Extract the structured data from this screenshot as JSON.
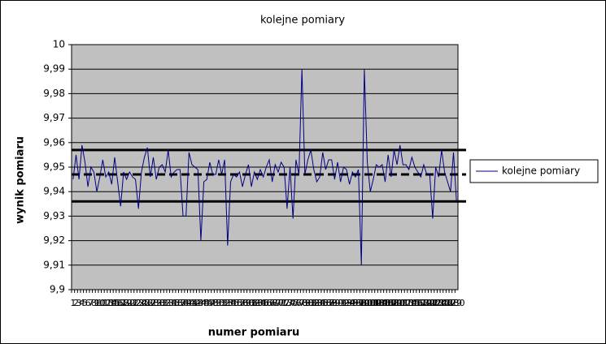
{
  "chart_data": {
    "type": "line",
    "title": "kolejne pomiary",
    "x_label": "numer pomiaru",
    "y_label": "wynik pomiaru",
    "x": [
      1,
      2,
      3,
      4,
      5,
      6,
      7,
      8,
      9,
      10,
      11,
      12,
      13,
      14,
      15,
      16,
      17,
      18,
      19,
      20,
      21,
      22,
      23,
      24,
      25,
      26,
      27,
      28,
      29,
      30,
      31,
      32,
      33,
      34,
      35,
      36,
      37,
      38,
      39,
      40,
      41,
      42,
      43,
      44,
      45,
      46,
      47,
      48,
      49,
      50,
      51,
      52,
      53,
      54,
      55,
      56,
      57,
      58,
      59,
      60,
      61,
      62,
      63,
      64,
      65,
      66,
      67,
      68,
      69,
      70,
      71,
      72,
      73,
      74,
      75,
      76,
      77,
      78,
      79,
      80,
      81,
      82,
      83,
      84,
      85,
      86,
      87,
      88,
      89,
      90,
      91,
      92,
      93,
      94,
      95,
      96,
      97,
      98,
      99,
      100,
      101,
      102,
      103,
      104,
      105,
      106,
      107,
      108,
      109,
      110,
      111,
      112,
      113,
      114,
      115,
      116,
      117,
      118,
      119,
      120,
      121,
      122,
      123,
      124,
      125,
      126,
      127,
      128,
      129,
      130
    ],
    "series": [
      {
        "name": "kolejne pomiary",
        "color": "#000080",
        "values": [
          9.945,
          9.955,
          9.945,
          9.959,
          9.952,
          9.942,
          9.95,
          9.948,
          9.94,
          9.946,
          9.953,
          9.946,
          9.948,
          9.943,
          9.954,
          9.944,
          9.934,
          9.948,
          9.945,
          9.948,
          9.946,
          9.945,
          9.933,
          9.948,
          9.954,
          9.958,
          9.946,
          9.954,
          9.945,
          9.95,
          9.951,
          9.948,
          9.957,
          9.946,
          9.948,
          9.949,
          9.949,
          9.93,
          9.93,
          9.956,
          9.951,
          9.95,
          9.949,
          9.92,
          9.944,
          9.945,
          9.952,
          9.947,
          9.947,
          9.953,
          9.947,
          9.953,
          9.918,
          9.944,
          9.947,
          9.946,
          9.948,
          9.942,
          9.947,
          9.951,
          9.942,
          9.948,
          9.945,
          9.949,
          9.946,
          9.95,
          9.953,
          9.944,
          9.951,
          9.948,
          9.952,
          9.95,
          9.933,
          9.95,
          9.929,
          9.953,
          9.947,
          9.99,
          9.947,
          9.953,
          9.957,
          9.949,
          9.944,
          9.946,
          9.956,
          9.949,
          9.953,
          9.953,
          9.945,
          9.952,
          9.944,
          9.95,
          9.949,
          9.943,
          9.948,
          9.946,
          9.949,
          9.91,
          9.99,
          9.952,
          9.94,
          9.945,
          9.951,
          9.95,
          9.951,
          9.944,
          9.955,
          9.946,
          9.957,
          9.951,
          9.959,
          9.951,
          9.951,
          9.949,
          9.954,
          9.95,
          9.948,
          9.946,
          9.951,
          9.947,
          9.947,
          9.929,
          9.95,
          9.946,
          9.957,
          9.948,
          9.944,
          9.94,
          9.956,
          9.936
        ]
      }
    ],
    "reference_lines": [
      {
        "value": 9.957,
        "style": "solid",
        "color": "#000000"
      },
      {
        "value": 9.947,
        "style": "dashed",
        "color": "#000000"
      },
      {
        "value": 9.936,
        "style": "solid",
        "color": "#000000"
      }
    ],
    "ylim": [
      9.9,
      10
    ],
    "yticks": [
      {
        "value": 9.9,
        "label": "9,9"
      },
      {
        "value": 9.91,
        "label": "9,91"
      },
      {
        "value": 9.92,
        "label": "9,92"
      },
      {
        "value": 9.93,
        "label": "9,93"
      },
      {
        "value": 9.94,
        "label": "9,94"
      },
      {
        "value": 9.95,
        "label": "9,95"
      },
      {
        "value": 9.96,
        "label": "9,96"
      },
      {
        "value": 9.97,
        "label": "9,97"
      },
      {
        "value": 9.98,
        "label": "9,98"
      },
      {
        "value": 9.99,
        "label": "9,99"
      },
      10
    ],
    "grid": true,
    "plot_background": "#c0c0c0",
    "legend": "right"
  }
}
